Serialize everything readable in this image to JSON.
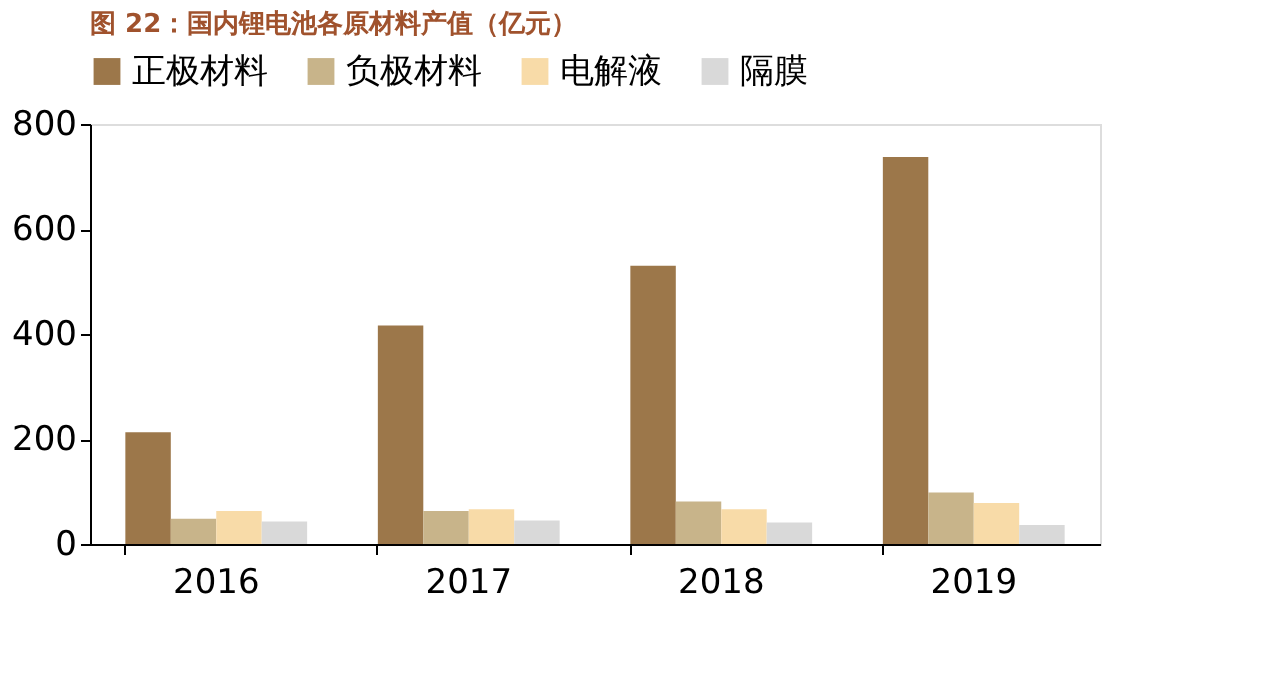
{
  "chart_data": {
    "type": "bar",
    "title": "图 22：国内锂电池各原材料产值（亿元）",
    "categories": [
      "2016",
      "2017",
      "2018",
      "2019"
    ],
    "series": [
      {
        "name": "正极材料",
        "color": "#9c774a",
        "values": [
          213,
          416,
          530,
          737
        ]
      },
      {
        "name": "负极材料",
        "color": "#c8b48a",
        "values": [
          48,
          63,
          81,
          98
        ]
      },
      {
        "name": "电解液",
        "color": "#f8dba8",
        "values": [
          63,
          66,
          66,
          78
        ]
      },
      {
        "name": "隔膜",
        "color": "#d9d9d9",
        "values": [
          43,
          45,
          41,
          36
        ]
      }
    ],
    "ylim": [
      0,
      800
    ],
    "yticks": [
      0,
      200,
      400,
      600,
      800
    ],
    "grid": false,
    "legend": "top"
  }
}
